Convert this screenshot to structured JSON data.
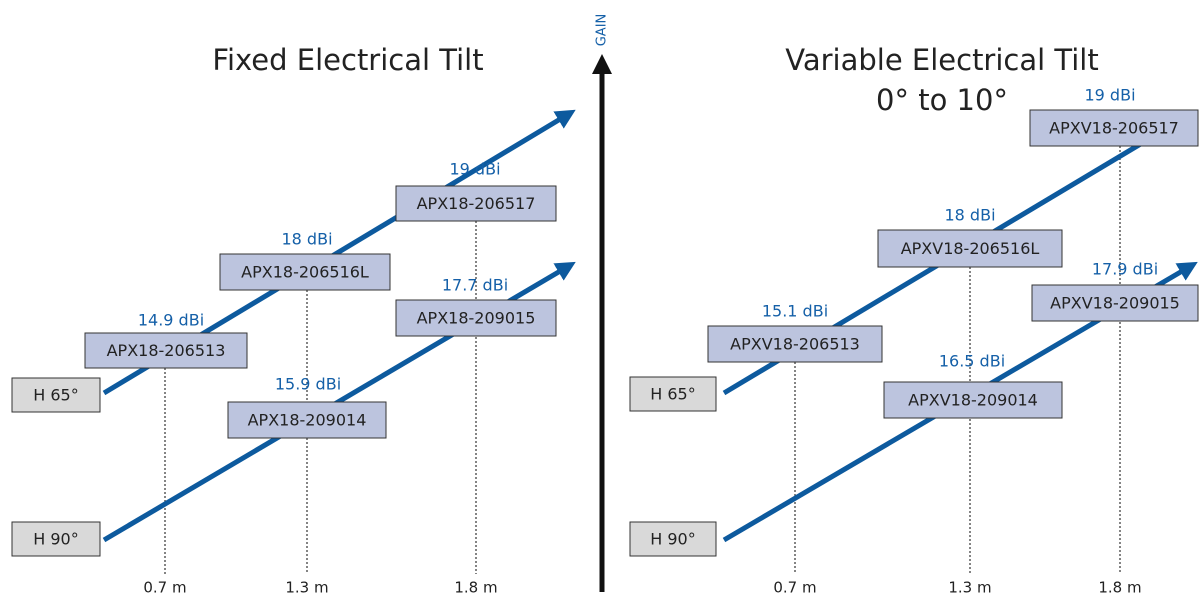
{
  "gain_axis": "GAIN",
  "panels": [
    {
      "title": [
        "Fixed Electrical Tilt"
      ],
      "rows": [
        "H 65°",
        "H 90°"
      ],
      "products": [
        {
          "name": "APX18-206513",
          "gain": "14.9 dBi"
        },
        {
          "name": "APX18-206516L",
          "gain": "18 dBi"
        },
        {
          "name": "APX18-206517",
          "gain": "19 dBi"
        },
        {
          "name": "APX18-209014",
          "gain": "15.9 dBi"
        },
        {
          "name": "APX18-209015",
          "gain": "17.7 dBi"
        }
      ],
      "lengths": [
        "0.7 m",
        "1.3 m",
        "1.8 m"
      ]
    },
    {
      "title": [
        "Variable Electrical Tilt",
        "0° to 10°"
      ],
      "rows": [
        "H 65°",
        "H 90°"
      ],
      "products": [
        {
          "name": "APXV18-206513",
          "gain": "15.1 dBi"
        },
        {
          "name": "APXV18-206516L",
          "gain": "18 dBi"
        },
        {
          "name": "APXV18-206517",
          "gain": "19 dBi"
        },
        {
          "name": "APXV18-209014",
          "gain": "16.5 dBi"
        },
        {
          "name": "APXV18-209015",
          "gain": "17.9 dBi"
        }
      ],
      "lengths": [
        "0.7 m",
        "1.3 m",
        "1.8 m"
      ]
    }
  ]
}
